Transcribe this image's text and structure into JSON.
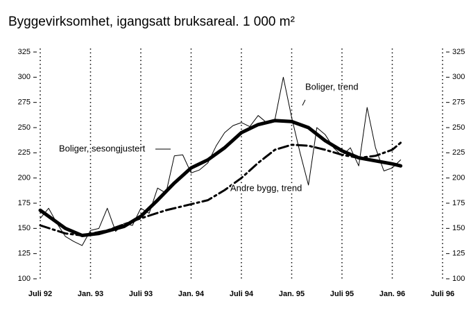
{
  "chart_data": {
    "type": "line",
    "title": "Byggevirksomhet, igangsatt bruksareal. 1 000 m²",
    "xlim": [
      0,
      48
    ],
    "xticks": [
      {
        "value": 0,
        "label": "Juli 92"
      },
      {
        "value": 6,
        "label": "Jan. 93"
      },
      {
        "value": 12,
        "label": "Juli 93"
      },
      {
        "value": 18,
        "label": "Jan. 94"
      },
      {
        "value": 24,
        "label": "Juli 94"
      },
      {
        "value": 30,
        "label": "Jan. 95"
      },
      {
        "value": 36,
        "label": "Juli 95"
      },
      {
        "value": 42,
        "label": "Jan. 96"
      },
      {
        "value": 48,
        "label": "Juli 96"
      }
    ],
    "ylim": [
      100,
      325
    ],
    "yticks": [
      100,
      125,
      150,
      175,
      200,
      225,
      250,
      275,
      300,
      325
    ],
    "y2lim": [
      100,
      325
    ],
    "y2ticks": [
      100,
      125,
      150,
      175,
      200,
      225,
      250,
      275,
      300,
      325
    ],
    "grid": true,
    "series": [
      {
        "name": "Boliger, sesongjustert",
        "color": "#000000",
        "style": "thin",
        "x": [
          0,
          1,
          2,
          3,
          4,
          5,
          6,
          7,
          8,
          9,
          10,
          11,
          12,
          13,
          14,
          15,
          16,
          17,
          18,
          19,
          20,
          21,
          22,
          23,
          24,
          25,
          26,
          27,
          28,
          29,
          30,
          31,
          32,
          33,
          34,
          35,
          36,
          37,
          38,
          39,
          40,
          41,
          42,
          43
        ],
        "values": [
          160,
          170,
          155,
          142,
          137,
          133,
          148,
          150,
          170,
          147,
          155,
          153,
          170,
          165,
          190,
          185,
          222,
          223,
          205,
          208,
          215,
          232,
          245,
          252,
          255,
          251,
          262,
          255,
          258,
          300,
          260,
          225,
          193,
          250,
          243,
          230,
          222,
          230,
          212,
          270,
          230,
          207,
          210,
          218
        ]
      },
      {
        "name": "Boliger, trend",
        "color": "#000000",
        "style": "thick",
        "x": [
          0,
          3,
          5,
          7,
          10,
          12,
          14,
          16,
          18,
          20,
          22,
          24,
          26,
          28,
          30,
          32,
          34,
          36,
          38,
          40,
          42,
          43
        ],
        "values": [
          168,
          150,
          143,
          145,
          152,
          162,
          178,
          195,
          210,
          218,
          230,
          245,
          253,
          257,
          256,
          250,
          237,
          227,
          220,
          217,
          214,
          212
        ]
      },
      {
        "name": "Andre bygg, trend",
        "color": "#000000",
        "style": "dashdot",
        "x": [
          0,
          3,
          5,
          8,
          12,
          15,
          18,
          20,
          22,
          24,
          26,
          28,
          30,
          32,
          34,
          36,
          38,
          40,
          42,
          43
        ],
        "values": [
          153,
          145,
          143,
          148,
          160,
          168,
          174,
          178,
          188,
          200,
          215,
          228,
          233,
          232,
          228,
          223,
          220,
          222,
          228,
          235
        ]
      }
    ]
  }
}
